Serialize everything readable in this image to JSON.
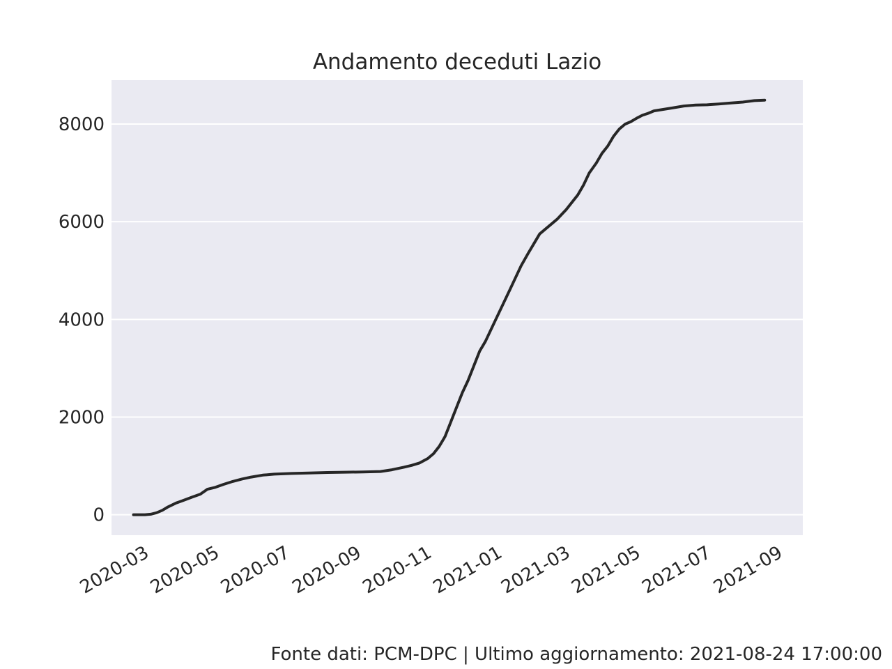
{
  "chart_data": {
    "type": "line",
    "title": "Andamento deceduti Lazio",
    "xlabel": "",
    "ylabel": "",
    "ylim": [
      -420,
      8900
    ],
    "xlim": [
      "2020-02-05",
      "2021-09-26"
    ],
    "x_ticks": [
      "2020-03",
      "2020-05",
      "2020-07",
      "2020-09",
      "2020-11",
      "2021-01",
      "2021-03",
      "2021-05",
      "2021-07",
      "2021-09"
    ],
    "y_ticks": [
      0,
      2000,
      4000,
      6000,
      8000
    ],
    "y_tick_labels": [
      "0",
      "2000",
      "4000",
      "6000",
      "8000"
    ],
    "grid": true,
    "line_color": "#262626",
    "background_color": "#eaeaf2",
    "series": [
      {
        "x": [
          "2020-02-24",
          "2020-03-05",
          "2020-03-10",
          "2020-03-15",
          "2020-03-20",
          "2020-03-25",
          "2020-04-01",
          "2020-04-08",
          "2020-04-15",
          "2020-04-22",
          "2020-04-28",
          "2020-05-05",
          "2020-05-12",
          "2020-05-20",
          "2020-05-28",
          "2020-06-05",
          "2020-06-15",
          "2020-06-25",
          "2020-07-10",
          "2020-07-25",
          "2020-08-10",
          "2020-08-25",
          "2020-09-10",
          "2020-09-25",
          "2020-10-05",
          "2020-10-15",
          "2020-10-22",
          "2020-10-29",
          "2020-11-05",
          "2020-11-10",
          "2020-11-15",
          "2020-11-20",
          "2020-11-25",
          "2020-11-30",
          "2020-12-05",
          "2020-12-10",
          "2020-12-15",
          "2020-12-20",
          "2020-12-25",
          "2020-12-31",
          "2021-01-05",
          "2021-01-10",
          "2021-01-15",
          "2021-01-20",
          "2021-01-25",
          "2021-01-31",
          "2021-02-05",
          "2021-02-10",
          "2021-02-15",
          "2021-02-20",
          "2021-02-25",
          "2021-03-01",
          "2021-03-05",
          "2021-03-10",
          "2021-03-15",
          "2021-03-20",
          "2021-03-25",
          "2021-03-31",
          "2021-04-05",
          "2021-04-10",
          "2021-04-15",
          "2021-04-20",
          "2021-04-25",
          "2021-04-30",
          "2021-05-05",
          "2021-05-10",
          "2021-05-15",
          "2021-05-20",
          "2021-05-28",
          "2021-06-05",
          "2021-06-15",
          "2021-06-25",
          "2021-07-05",
          "2021-07-15",
          "2021-07-25",
          "2021-08-05",
          "2021-08-15",
          "2021-08-24"
        ],
        "y": [
          0,
          0,
          10,
          40,
          90,
          160,
          240,
          300,
          360,
          420,
          520,
          560,
          620,
          680,
          730,
          770,
          810,
          830,
          845,
          855,
          865,
          870,
          875,
          885,
          920,
          970,
          1010,
          1060,
          1150,
          1250,
          1400,
          1600,
          1900,
          2200,
          2500,
          2750,
          3050,
          3350,
          3550,
          3850,
          4100,
          4350,
          4600,
          4850,
          5100,
          5350,
          5550,
          5750,
          5850,
          5950,
          6050,
          6150,
          6250,
          6400,
          6550,
          6750,
          7000,
          7200,
          7400,
          7550,
          7750,
          7900,
          8000,
          8050,
          8120,
          8180,
          8220,
          8270,
          8300,
          8330,
          8370,
          8390,
          8395,
          8410,
          8430,
          8450,
          8480,
          8490
        ]
      }
    ]
  },
  "footer": {
    "source_text": "Fonte dati: PCM-DPC | Ultimo aggiornamento: 2021-08-24 17:00:00"
  }
}
